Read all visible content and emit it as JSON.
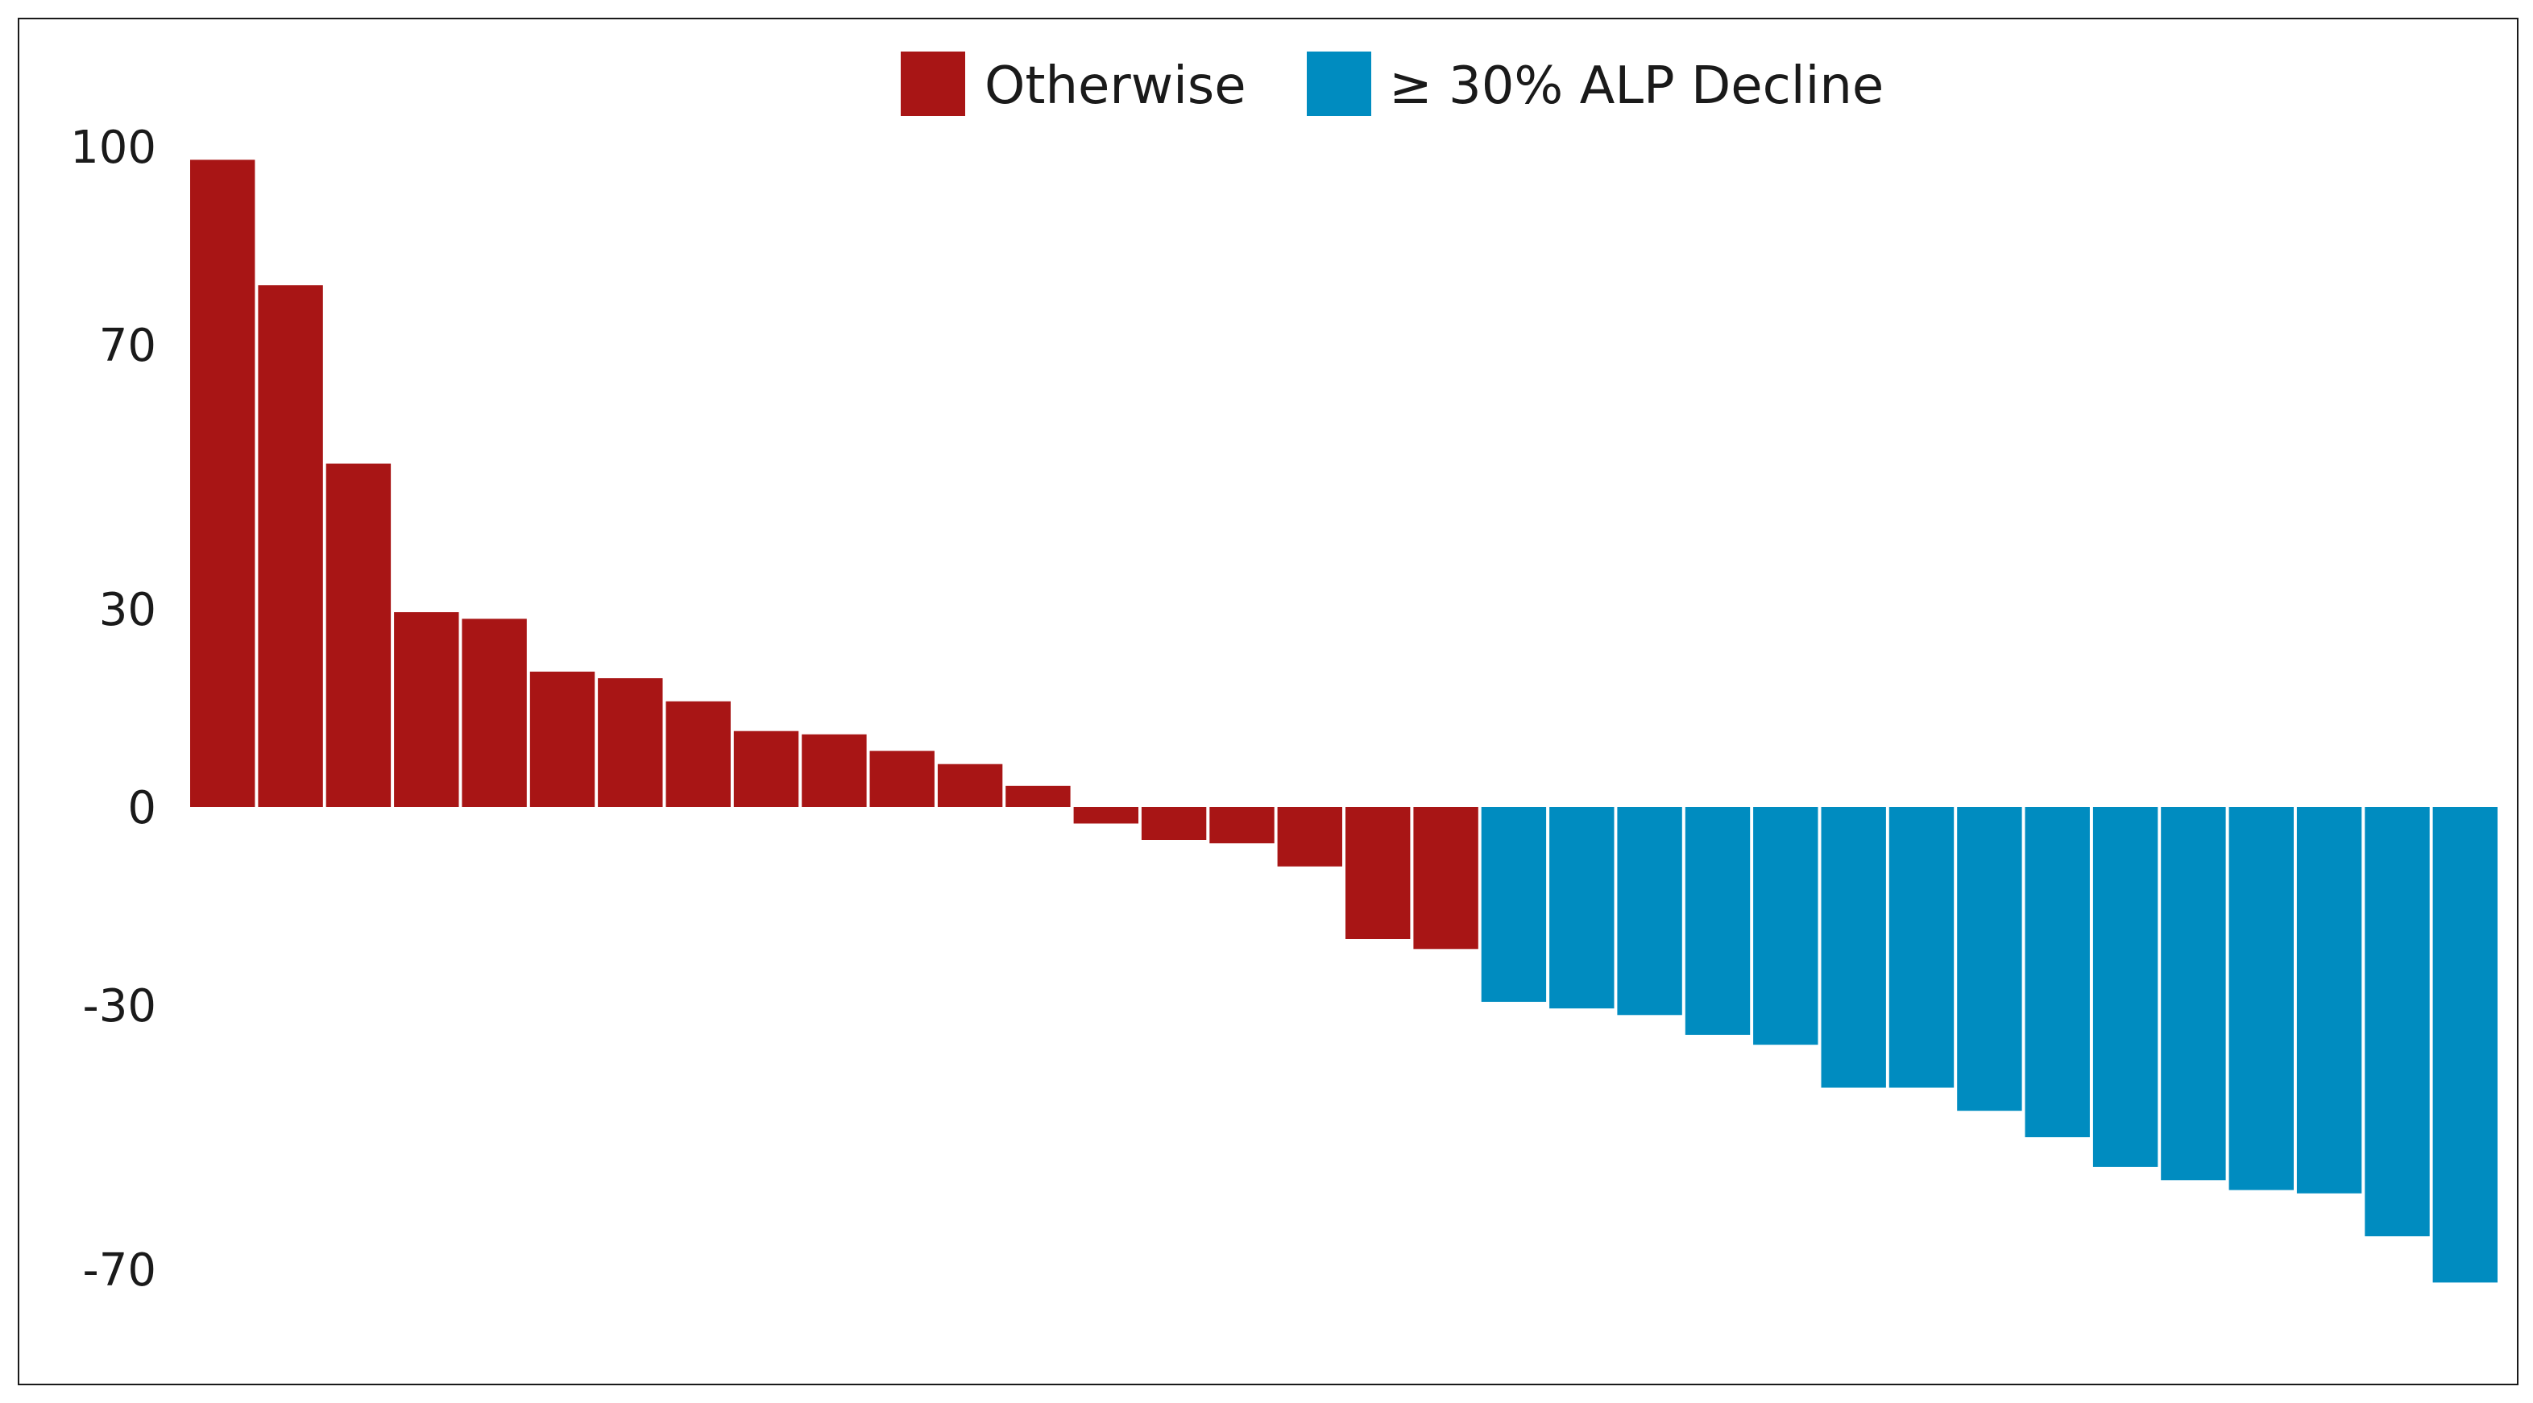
{
  "chart_data": {
    "type": "bar",
    "title": "",
    "xlabel": "",
    "ylabel": "",
    "ylim": [
      -75,
      100
    ],
    "yticks": [
      {
        "value": 100,
        "label": "100"
      },
      {
        "value": 70,
        "label": "70"
      },
      {
        "value": 30,
        "label": "30"
      },
      {
        "value": 0,
        "label": "0"
      },
      {
        "value": -30,
        "label": "-30"
      },
      {
        "value": -70,
        "label": "-70"
      }
    ],
    "grid": false,
    "legend_position": "top-center",
    "series": [
      {
        "name": "Otherwise",
        "color": "#a81515",
        "values": [
          98,
          79,
          52,
          29.5,
          28.5,
          20.5,
          19.5,
          16,
          11.5,
          11,
          8.5,
          6.5,
          3.2,
          -2.5,
          -5,
          -5.5,
          -9,
          -20,
          -21.5
        ]
      },
      {
        "name": "≥ 30% ALP Decline",
        "color": "#008cc0",
        "values": [
          -29.5,
          -30.5,
          -31.5,
          -34.5,
          -36,
          -42.5,
          -42.5,
          -46,
          -50,
          -54.5,
          -56.5,
          -58,
          -58.5,
          -65,
          -72
        ]
      }
    ]
  }
}
